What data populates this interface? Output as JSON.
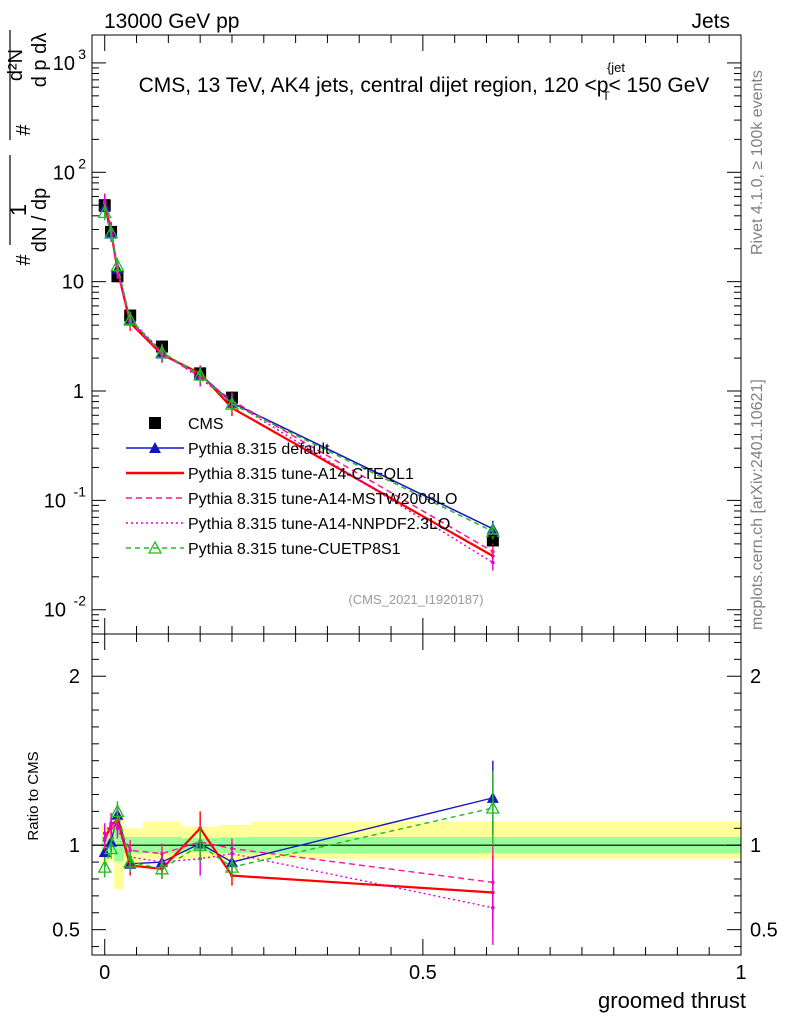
{
  "header": {
    "energy": "13000 GeV pp",
    "category": "Jets"
  },
  "side_labels": {
    "rivet": "Rivet 4.1.0, ≥ 100k events",
    "mcplots": "mcplots.cern.ch [arXiv:2401.10621]"
  },
  "chart_data": [
    {
      "type": "line",
      "panel": "main",
      "title": "CMS, 13 TeV, AK4 jets, central dijet region, 120 <p_T^{jet}< 150 GeV",
      "ylabel": "1/(dN/dp_T) dN/(dp_T dλ)",
      "yscale": "log",
      "ylim": [
        0.006,
        1800
      ],
      "xlim": [
        -0.02,
        1.0
      ],
      "ytick_labels": [
        "10^-2",
        "10^-1",
        "1",
        "10",
        "10^2",
        "10^3"
      ],
      "watermark": "(CMS_2021_I1920187)",
      "x": [
        0.0,
        0.01,
        0.02,
        0.04,
        0.09,
        0.15,
        0.2,
        0.61
      ],
      "series": [
        {
          "name": "CMS",
          "marker": "square",
          "color": "#000000",
          "dash": "none",
          "values": [
            50,
            28.5,
            11.2,
            4.9,
            2.55,
            1.45,
            0.87,
            0.043
          ]
        },
        {
          "name": "Pythia 8.315 default",
          "marker": "triangle",
          "color": "#1515c8",
          "dash": "none",
          "values": [
            48,
            27.5,
            13.0,
            4.4,
            2.2,
            1.42,
            0.78,
            0.055
          ]
        },
        {
          "name": "Pythia 8.315 tune-A14-CTEQL1",
          "marker": "none",
          "color": "#ff0000",
          "dash": "none",
          "values": [
            52,
            29.0,
            12.8,
            4.2,
            2.15,
            1.45,
            0.7,
            0.031
          ]
        },
        {
          "name": "Pythia 8.315 tune-A14-MSTW2008LO",
          "marker": "none",
          "color": "#ff1493",
          "dash": "6,4",
          "values": [
            53,
            29.5,
            12.5,
            4.3,
            2.2,
            1.35,
            0.82,
            0.034
          ]
        },
        {
          "name": "Pythia 8.315 tune-A14-NNPDF2.3LO",
          "marker": "none",
          "color": "#e000e0",
          "dash": "2,3",
          "values": [
            54,
            30.0,
            12.6,
            4.5,
            2.3,
            1.3,
            0.8,
            0.027
          ]
        },
        {
          "name": "Pythia 8.315 tune-CUETP8S1",
          "marker": "open-triangle",
          "color": "#22bb22",
          "dash": "5,4",
          "values": [
            43,
            28.0,
            14.0,
            4.5,
            2.25,
            1.4,
            0.76,
            0.052
          ]
        }
      ],
      "legend_position": "lower-left"
    },
    {
      "type": "line",
      "panel": "ratio",
      "ylabel": "Ratio to CMS",
      "xlabel": "groomed thrust",
      "ylim": [
        0.35,
        2.25
      ],
      "xlim": [
        -0.02,
        1.0
      ],
      "ytick_labels": [
        "0.5",
        "1",
        "2"
      ],
      "xtick_labels": [
        "0",
        "0.5",
        "1"
      ],
      "x": [
        0.0,
        0.01,
        0.02,
        0.04,
        0.09,
        0.15,
        0.2,
        0.61
      ],
      "series": [
        {
          "name": "Pythia 8.315 default",
          "color": "#1515c8",
          "dash": "none",
          "values": [
            0.96,
            1.02,
            1.18,
            0.89,
            0.9,
            1.01,
            0.9,
            1.28
          ]
        },
        {
          "name": "Pythia 8.315 tune-A14-CTEQL1",
          "color": "#ff0000",
          "dash": "none",
          "values": [
            1.03,
            1.12,
            1.15,
            0.88,
            0.86,
            1.1,
            0.82,
            0.72
          ]
        },
        {
          "name": "Pythia 8.315 tune-A14-MSTW2008LO",
          "color": "#ff1493",
          "dash": "6,4",
          "values": [
            1.04,
            1.1,
            1.12,
            0.97,
            0.95,
            1.02,
            0.98,
            0.78
          ]
        },
        {
          "name": "Pythia 8.315 tune-A14-NNPDF2.3LO",
          "color": "#e000e0",
          "dash": "2,3",
          "values": [
            1.07,
            1.13,
            1.1,
            0.93,
            0.9,
            0.92,
            0.95,
            0.63
          ]
        },
        {
          "name": "Pythia 8.315 tune-CUETP8S1",
          "color": "#22bb22",
          "dash": "5,4",
          "values": [
            0.87,
            0.98,
            1.2,
            0.9,
            0.86,
            1.0,
            0.87,
            1.22
          ]
        }
      ],
      "bands": [
        {
          "x0": -0.005,
          "x1": 0.005,
          "lo": 0.88,
          "hi": 1.12
        },
        {
          "x0": 0.005,
          "x1": 0.015,
          "lo": 0.9,
          "hi": 1.1
        },
        {
          "x0": 0.015,
          "x1": 0.03,
          "lo": 0.74,
          "hi": 1.18
        },
        {
          "x0": 0.03,
          "x1": 0.06,
          "lo": 0.88,
          "hi": 1.1
        },
        {
          "x0": 0.06,
          "x1": 0.12,
          "lo": 0.92,
          "hi": 1.14
        },
        {
          "x0": 0.12,
          "x1": 0.18,
          "lo": 0.92,
          "hi": 1.11
        },
        {
          "x0": 0.18,
          "x1": 0.23,
          "lo": 0.91,
          "hi": 1.12
        },
        {
          "x0": 0.23,
          "x1": 1.0,
          "lo": 0.92,
          "hi": 1.14
        }
      ]
    }
  ]
}
